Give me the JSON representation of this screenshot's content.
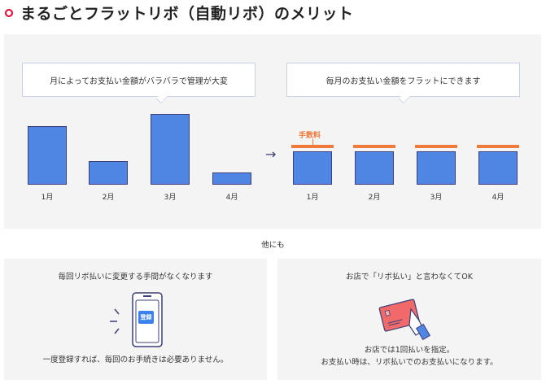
{
  "title": "まるごとフラットリボ（自動リボ）のメリット",
  "left": {
    "bubble": "月によってお支払い金額がバラバラで管理が大変",
    "months": [
      "1月",
      "2月",
      "3月",
      "4月"
    ]
  },
  "right": {
    "bubble": "毎月のお支払い金額をフラットにできます",
    "fee_label": "手数料",
    "months": [
      "1月",
      "2月",
      "3月",
      "4月"
    ]
  },
  "others_label": "他にも",
  "card1": {
    "title": "毎回リボ払いに変更する手間がなくなります",
    "button": "登録",
    "text": "一度登録すれば、毎回のお手続きは必要ありません。"
  },
  "card2": {
    "title": "お店で「リボ払い」と言わなくてOK",
    "text1": "お店では1回払いを指定。",
    "text2": "お支払い時は、リボ払いでのお支払いになります。"
  },
  "colors": {
    "accent": "#e60033",
    "bar": "#4f86e4",
    "fee": "#f07a3a"
  }
}
